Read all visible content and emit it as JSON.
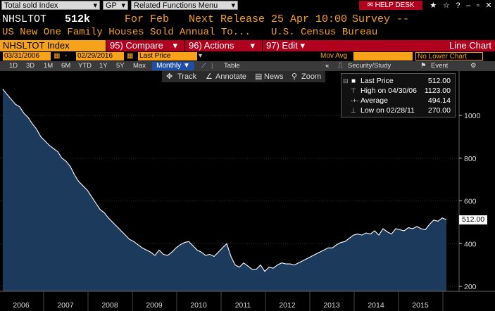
{
  "topbar": {
    "security": "Total sold Index",
    "market": "GP",
    "related": "Related Functions Menu",
    "help_desk": "HELP DESK",
    "icons": [
      "star-icon",
      "star-icon",
      "question-icon",
      "minimize-icon",
      "restore-icon",
      "close-icon"
    ]
  },
  "header": {
    "ticker": "NHSLTOT",
    "value": "512k",
    "for_label": "For Feb",
    "next_release": "Next Release 25 Apr 10:00",
    "survey": "Survey --",
    "description": "US New One Family Houses Sold Annual To...",
    "source": "U.S. Census Bureau"
  },
  "orangebar": {
    "security": "NHSLTOT Index",
    "compare": "95) Compare",
    "actions": "96) Actions",
    "edit": "97) Edit",
    "line_chart": "Line Chart"
  },
  "datebar": {
    "start_date": "03/31/2006",
    "end_date": "02/29/2016",
    "field": "Last Price",
    "mov_avg": "Mov Avg",
    "lower_chart": "No Lower Chart"
  },
  "periodbar": {
    "periods": [
      "1D",
      "3D",
      "1M",
      "6M",
      "YTD",
      "1Y",
      "5Y",
      "Max"
    ],
    "frequency": "Monthly",
    "table": "Table",
    "security_study": "Security/Study",
    "event": "Event"
  },
  "tools": {
    "track": "Track",
    "annotate": "Annotate",
    "news": "News",
    "zoom": "Zoom"
  },
  "legend": {
    "last_price_label": "Last Price",
    "last_price_value": "512.00",
    "high_label": "High on 04/30/06",
    "high_value": "1123.00",
    "average_label": "Average",
    "average_value": "494.14",
    "low_label": "Low on 02/28/11",
    "low_value": "270.00"
  },
  "last_value_tag": "512.00",
  "colors": {
    "accent_orange": "#f7a21b",
    "accent_red": "#b0001e",
    "area_fill": "#1b3a5c"
  },
  "chart_data": {
    "type": "area",
    "series": [
      {
        "values": [
          1123,
          1098,
          1075,
          1052,
          1040,
          1010,
          990,
          960,
          935,
          900,
          880,
          860,
          845,
          830,
          800,
          785,
          760,
          720,
          690,
          670,
          650,
          620,
          590,
          560,
          545,
          520,
          500,
          480,
          460,
          440,
          420,
          410,
          395,
          380,
          370,
          360,
          345,
          370,
          350,
          345,
          360,
          380,
          395,
          405,
          410,
          390,
          370,
          360,
          345,
          350,
          340,
          360,
          380,
          400,
          340,
          300,
          290,
          310,
          295,
          280,
          280,
          300,
          270,
          290,
          285,
          300,
          310,
          305,
          305,
          300,
          310,
          320,
          330,
          340,
          350,
          360,
          370,
          380,
          380,
          395,
          405,
          410,
          425,
          440,
          445,
          440,
          450,
          445,
          460,
          440,
          470,
          455,
          445,
          470,
          465,
          460,
          475,
          470,
          480,
          470,
          465,
          490,
          510,
          505,
          520,
          512
        ]
      }
    ],
    "x_ticks": [
      "2006",
      "2007",
      "2008",
      "2009",
      "2010",
      "2011",
      "2012",
      "2013",
      "2014",
      "2015"
    ],
    "y_ticks": [
      200,
      400,
      600,
      800,
      1000
    ],
    "ylim": [
      180,
      1160
    ],
    "grid": true,
    "last_value": 512.0
  }
}
